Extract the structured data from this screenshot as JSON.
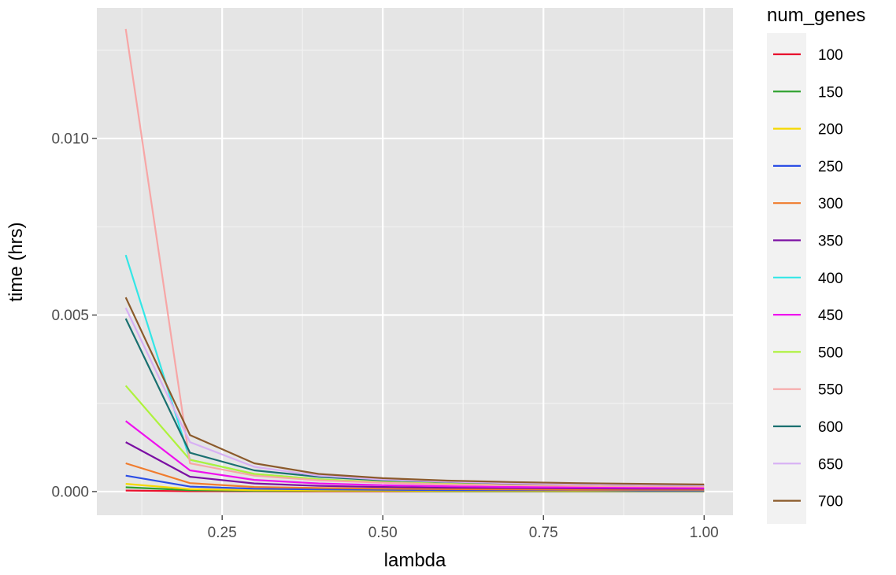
{
  "chart_data": {
    "type": "line",
    "title": "",
    "xlabel": "lambda",
    "ylabel": "time (hrs)",
    "xlim": [
      0.055,
      1.045
    ],
    "ylim": [
      -0.00067,
      0.0137
    ],
    "x_ticks": [
      0.25,
      0.5,
      0.75,
      1.0
    ],
    "x_tick_labels": [
      "0.25",
      "0.50",
      "0.75",
      "1.00"
    ],
    "y_ticks": [
      0.0,
      0.005,
      0.01
    ],
    "y_tick_labels": [
      "0.000",
      "0.005",
      "0.010"
    ],
    "grid": true,
    "panel_background": "#e5e5e5",
    "grid_color": "#ffffff",
    "legend": {
      "title": "num_genes",
      "position": "right"
    },
    "x": [
      0.1,
      0.2,
      0.3,
      0.4,
      0.5,
      0.6,
      0.7,
      0.8,
      0.9,
      1.0
    ],
    "series": [
      {
        "name": "100",
        "color": "#e8112d",
        "values": [
          3e-05,
          1e-05,
          1e-05,
          5e-06,
          5e-06,
          5e-06,
          5e-06,
          5e-06,
          5e-06,
          5e-06
        ]
      },
      {
        "name": "150",
        "color": "#2ca02c",
        "values": [
          0.00012,
          4e-05,
          2e-05,
          2e-05,
          2e-05,
          1e-05,
          1e-05,
          1e-05,
          1e-05,
          1e-05
        ]
      },
      {
        "name": "200",
        "color": "#f5d800",
        "values": [
          0.00022,
          7e-05,
          4e-05,
          3e-05,
          3e-05,
          2e-05,
          2e-05,
          2e-05,
          2e-05,
          2e-05
        ]
      },
      {
        "name": "250",
        "color": "#2c4ee5",
        "values": [
          0.00045,
          0.00014,
          8e-05,
          6e-05,
          5e-05,
          4e-05,
          4e-05,
          4e-05,
          3e-05,
          3e-05
        ]
      },
      {
        "name": "300",
        "color": "#f07c2e",
        "values": [
          0.0008,
          0.00024,
          0.00013,
          0.0001,
          8e-05,
          7e-05,
          6e-05,
          5e-05,
          5e-05,
          5e-05
        ]
      },
      {
        "name": "350",
        "color": "#7b0fa3",
        "values": [
          0.0014,
          0.00042,
          0.00023,
          0.00016,
          0.00013,
          0.00011,
          0.0001,
          9e-05,
          8e-05,
          8e-05
        ]
      },
      {
        "name": "400",
        "color": "#33e6e6",
        "values": [
          0.0067,
          0.0009,
          0.0005,
          0.00035,
          0.00026,
          0.00022,
          0.00019,
          0.00017,
          0.00015,
          0.00014
        ]
      },
      {
        "name": "450",
        "color": "#ee11ee",
        "values": [
          0.002,
          0.0006,
          0.00033,
          0.00023,
          0.00018,
          0.00015,
          0.00013,
          0.00012,
          0.00011,
          0.0001
        ]
      },
      {
        "name": "500",
        "color": "#aef23c",
        "values": [
          0.003,
          0.0009,
          0.0005,
          0.00035,
          0.00027,
          0.00022,
          0.00019,
          0.00017,
          0.00016,
          0.00015
        ]
      },
      {
        "name": "550",
        "color": "#f7a6a6",
        "values": [
          0.0131,
          0.0008,
          0.00045,
          0.00032,
          0.00025,
          0.0002,
          0.00018,
          0.00016,
          0.00015,
          0.00014
        ]
      },
      {
        "name": "600",
        "color": "#1a7070",
        "values": [
          0.0049,
          0.0011,
          0.0006,
          0.00042,
          0.00032,
          0.00027,
          0.00023,
          0.00021,
          0.00019,
          0.00018
        ]
      },
      {
        "name": "650",
        "color": "#d7b0f4",
        "values": [
          0.0052,
          0.0014,
          0.0007,
          0.00045,
          0.00034,
          0.00028,
          0.00024,
          0.00021,
          0.00019,
          0.00018
        ]
      },
      {
        "name": "700",
        "color": "#8b5a2b",
        "values": [
          0.0055,
          0.0016,
          0.0008,
          0.0005,
          0.00038,
          0.00031,
          0.00027,
          0.00024,
          0.00022,
          0.0002
        ]
      }
    ]
  }
}
